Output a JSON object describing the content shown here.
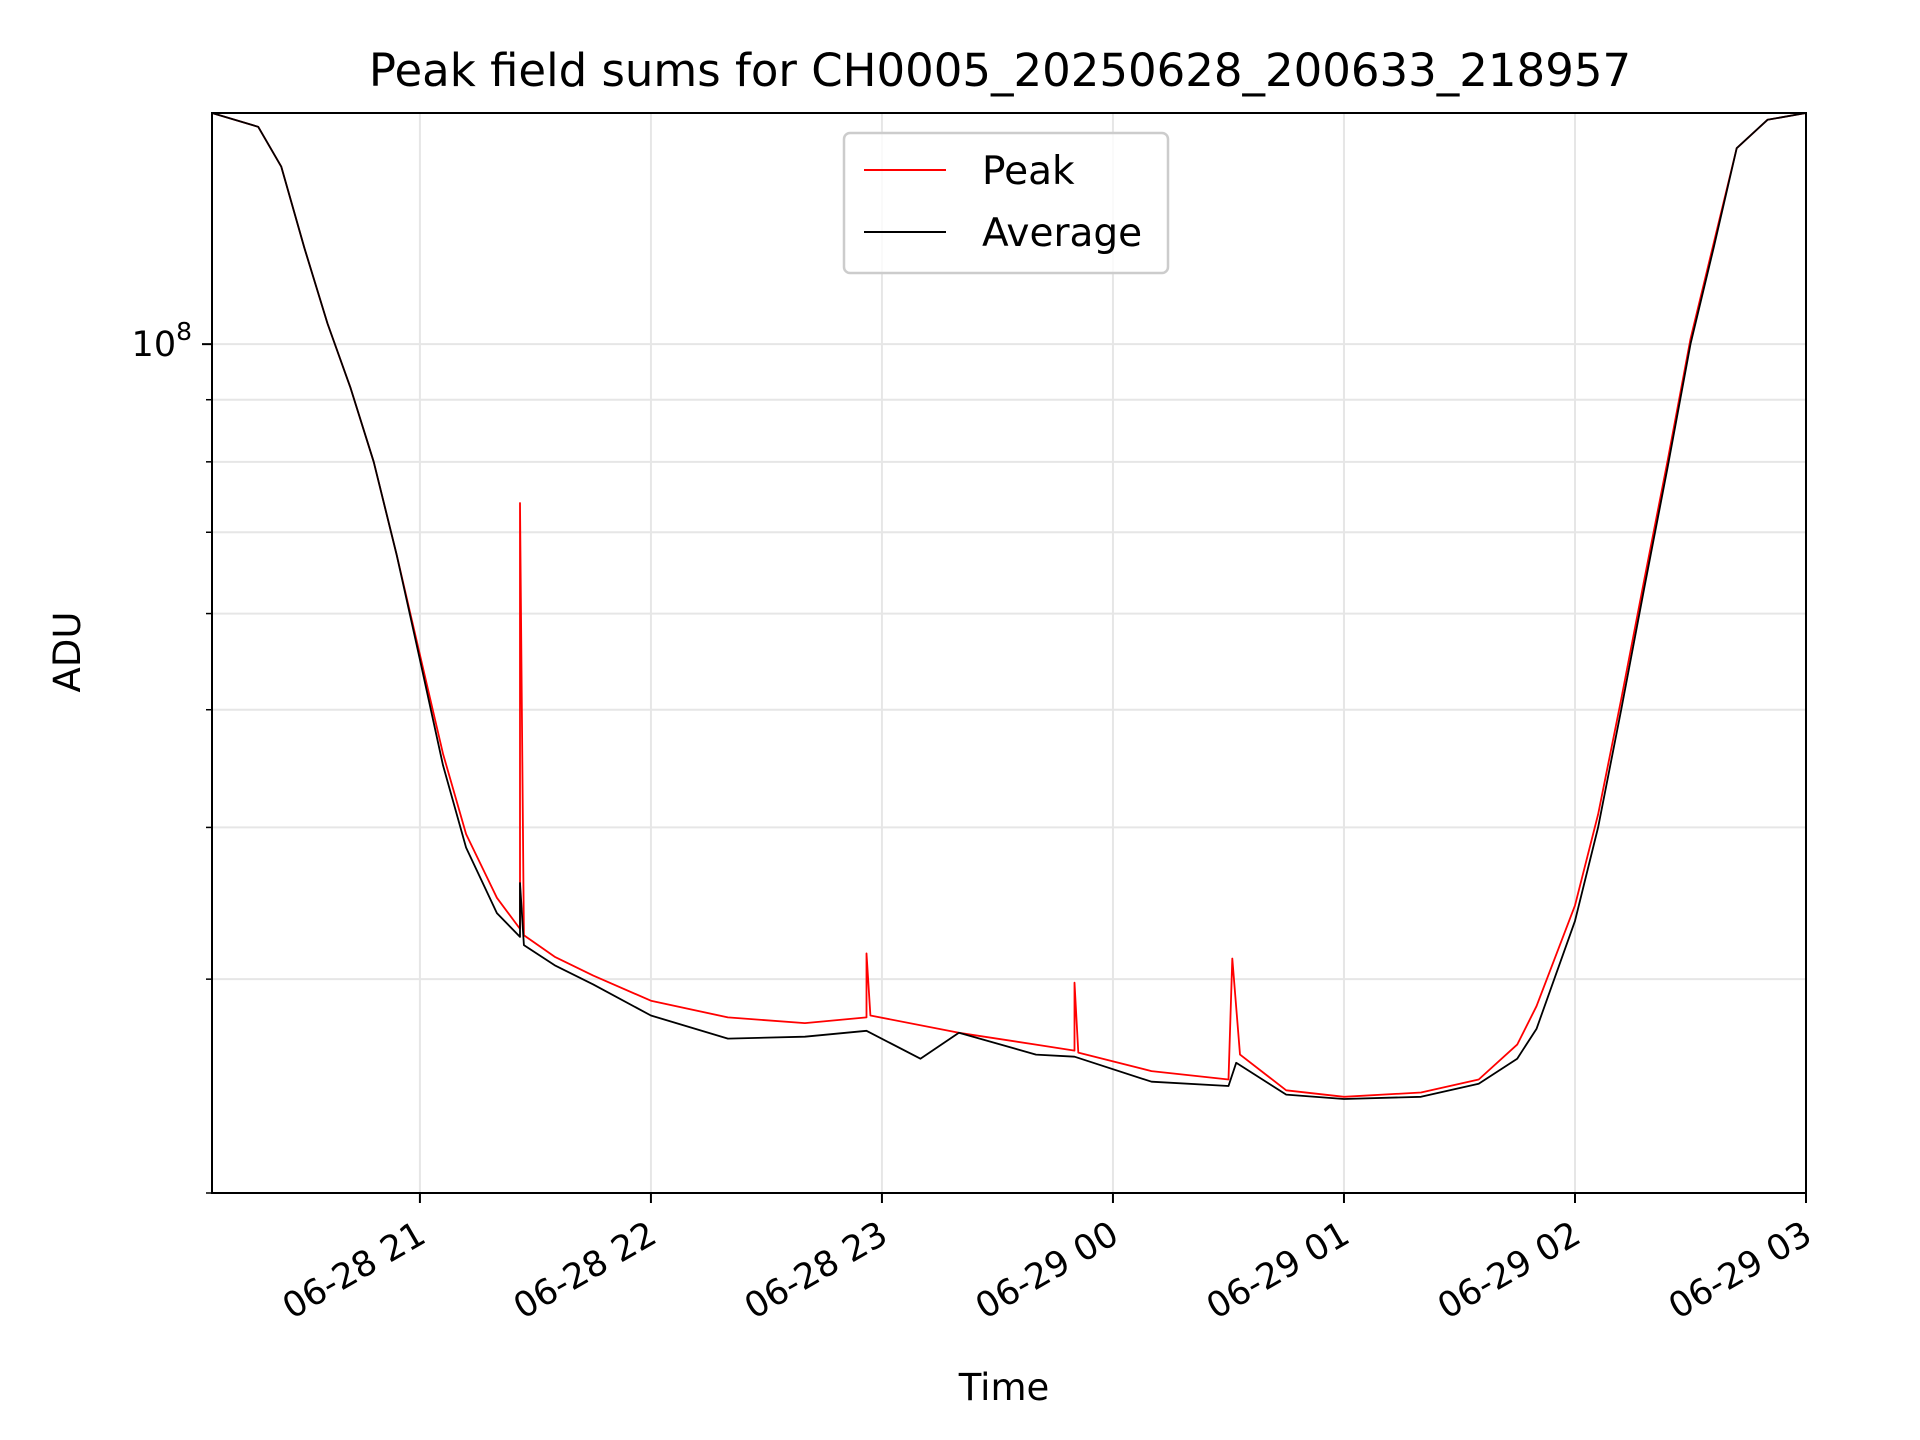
{
  "chart_data": {
    "type": "line",
    "title": "Peak field sums for CH0005_20250628_200633_218957",
    "xlabel": "Time",
    "ylabel": "ADU",
    "yscale": "log",
    "grid": true,
    "legend_placement": "upper center",
    "x_tick_labels": [
      "06-28 21",
      "06-28 22",
      "06-28 23",
      "06-29 00",
      "06-29 01",
      "06-29 02",
      "06-29 03"
    ],
    "y_tick_labels": [
      {
        "base": "10",
        "exp": "8"
      }
    ],
    "xlim": [
      "2025-06-28 20:06",
      "2025-06-29 03:00"
    ],
    "ylim": [
      20000000,
      155000000
    ],
    "colors": {
      "peak": "#ff0000",
      "average": "#000000"
    },
    "series": [
      {
        "name": "Peak",
        "color": "#ff0000",
        "points": [
          [
            "2025-06-28 20:06",
            155000000
          ],
          [
            "2025-06-28 20:18",
            151000000
          ],
          [
            "2025-06-28 20:24",
            140000000
          ],
          [
            "2025-06-28 20:30",
            120000000
          ],
          [
            "2025-06-28 20:36",
            104000000
          ],
          [
            "2025-06-28 20:42",
            92000000
          ],
          [
            "2025-06-28 20:48",
            80000000
          ],
          [
            "2025-06-28 20:54",
            67000000
          ],
          [
            "2025-06-28 21:00",
            55500000
          ],
          [
            "2025-06-28 21:06",
            46000000
          ],
          [
            "2025-06-28 21:12",
            39500000
          ],
          [
            "2025-06-28 21:20",
            35000000
          ],
          [
            "2025-06-28 21:26",
            33000000
          ],
          [
            "2025-06-28 21:26",
            74000000
          ],
          [
            "2025-06-28 21:27",
            32600000
          ],
          [
            "2025-06-28 21:35",
            31300000
          ],
          [
            "2025-06-28 21:45",
            30200000
          ],
          [
            "2025-06-28 22:00",
            28800000
          ],
          [
            "2025-06-28 22:20",
            27900000
          ],
          [
            "2025-06-28 22:40",
            27600000
          ],
          [
            "2025-06-28 22:56",
            27900000
          ],
          [
            "2025-06-28 22:56",
            31500000
          ],
          [
            "2025-06-28 22:57",
            28000000
          ],
          [
            "2025-06-28 23:20",
            27100000
          ],
          [
            "2025-06-28 23:40",
            26500000
          ],
          [
            "2025-06-28 23:50",
            26200000
          ],
          [
            "2025-06-28 23:50",
            29800000
          ],
          [
            "2025-06-28 23:51",
            26100000
          ],
          [
            "2025-06-29 00:10",
            25200000
          ],
          [
            "2025-06-29 00:30",
            24800000
          ],
          [
            "2025-06-29 00:31",
            31200000
          ],
          [
            "2025-06-29 00:33",
            26000000
          ],
          [
            "2025-06-29 00:45",
            24300000
          ],
          [
            "2025-06-29 01:00",
            24000000
          ],
          [
            "2025-06-29 01:20",
            24200000
          ],
          [
            "2025-06-29 01:35",
            24800000
          ],
          [
            "2025-06-29 01:45",
            26500000
          ],
          [
            "2025-06-29 01:50",
            28500000
          ],
          [
            "2025-06-29 02:00",
            34500000
          ],
          [
            "2025-06-29 02:06",
            41000000
          ],
          [
            "2025-06-29 02:12",
            51000000
          ],
          [
            "2025-06-29 02:18",
            64000000
          ],
          [
            "2025-06-29 02:24",
            80000000
          ],
          [
            "2025-06-29 02:30",
            101000000
          ],
          [
            "2025-06-29 02:36",
            121000000
          ],
          [
            "2025-06-29 02:42",
            145000000
          ],
          [
            "2025-06-29 02:50",
            153000000
          ],
          [
            "2025-06-29 03:00",
            155000000
          ]
        ]
      },
      {
        "name": "Average",
        "color": "#000000",
        "points": [
          [
            "2025-06-28 20:06",
            155000000
          ],
          [
            "2025-06-28 20:18",
            151000000
          ],
          [
            "2025-06-28 20:24",
            140000000
          ],
          [
            "2025-06-28 20:30",
            120000000
          ],
          [
            "2025-06-28 20:36",
            104000000
          ],
          [
            "2025-06-28 20:42",
            92000000
          ],
          [
            "2025-06-28 20:48",
            80000000
          ],
          [
            "2025-06-28 20:54",
            67000000
          ],
          [
            "2025-06-28 21:00",
            55000000
          ],
          [
            "2025-06-28 21:06",
            45000000
          ],
          [
            "2025-06-28 21:12",
            38500000
          ],
          [
            "2025-06-28 21:20",
            34000000
          ],
          [
            "2025-06-28 21:26",
            32500000
          ],
          [
            "2025-06-28 21:26",
            36000000
          ],
          [
            "2025-06-28 21:27",
            32000000
          ],
          [
            "2025-06-28 21:35",
            30800000
          ],
          [
            "2025-06-28 21:45",
            29700000
          ],
          [
            "2025-06-28 22:00",
            28000000
          ],
          [
            "2025-06-28 22:20",
            26800000
          ],
          [
            "2025-06-28 22:40",
            26900000
          ],
          [
            "2025-06-28 22:56",
            27200000
          ],
          [
            "2025-06-28 23:10",
            25800000
          ],
          [
            "2025-06-28 23:20",
            27100000
          ],
          [
            "2025-06-28 23:40",
            26000000
          ],
          [
            "2025-06-28 23:50",
            25900000
          ],
          [
            "2025-06-29 00:10",
            24700000
          ],
          [
            "2025-06-29 00:30",
            24500000
          ],
          [
            "2025-06-29 00:32",
            25600000
          ],
          [
            "2025-06-29 00:45",
            24100000
          ],
          [
            "2025-06-29 01:00",
            23900000
          ],
          [
            "2025-06-29 01:20",
            24000000
          ],
          [
            "2025-06-29 01:35",
            24600000
          ],
          [
            "2025-06-29 01:45",
            25800000
          ],
          [
            "2025-06-29 01:50",
            27300000
          ],
          [
            "2025-06-29 02:00",
            33500000
          ],
          [
            "2025-06-29 02:06",
            40000000
          ],
          [
            "2025-06-29 02:12",
            50000000
          ],
          [
            "2025-06-29 02:18",
            63000000
          ],
          [
            "2025-06-29 02:24",
            79000000
          ],
          [
            "2025-06-29 02:30",
            100000000
          ],
          [
            "2025-06-29 02:36",
            120000000
          ],
          [
            "2025-06-29 02:42",
            145000000
          ],
          [
            "2025-06-29 02:50",
            153000000
          ],
          [
            "2025-06-29 03:00",
            155000000
          ]
        ]
      }
    ]
  }
}
